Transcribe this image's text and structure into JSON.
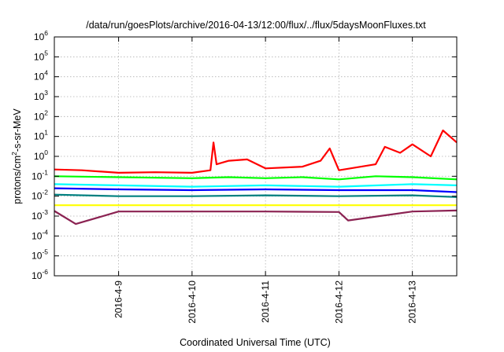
{
  "chart_data": {
    "type": "line",
    "title": "/data/run/goesPlots/archive/2016-04-13/12:00/flux/../flux/5daysMoonFluxes.txt",
    "xlabel": "Coordinated Universal Time (UTC)",
    "ylabel": "protons/cm²-s-sr-MeV",
    "ylabel_parts": {
      "pre": "protons/cm",
      "sup": "2",
      "post": "-s-sr-MeV"
    },
    "yscale": "log",
    "ylim": [
      1e-06,
      1000000.0
    ],
    "xlim": [
      "2016-04-08T03:00",
      "2016-04-13T14:30"
    ],
    "grid": true,
    "x_ticks": [
      {
        "label": "2016-4-9",
        "at": "2016-04-09T00:00"
      },
      {
        "label": "2016-4-10",
        "at": "2016-04-10T00:00"
      },
      {
        "label": "2016-4-11",
        "at": "2016-04-11T00:00"
      },
      {
        "label": "2016-4-12",
        "at": "2016-04-12T00:00"
      },
      {
        "label": "2016-4-13",
        "at": "2016-04-13T00:00"
      }
    ],
    "y_ticks": [
      {
        "base": "10",
        "exp": "-6",
        "value": 1e-06
      },
      {
        "base": "10",
        "exp": "-5",
        "value": 1e-05
      },
      {
        "base": "10",
        "exp": "-4",
        "value": 0.0001
      },
      {
        "base": "10",
        "exp": "-3",
        "value": 0.001
      },
      {
        "base": "10",
        "exp": "-2",
        "value": 0.01
      },
      {
        "base": "10",
        "exp": "-1",
        "value": 0.1
      },
      {
        "base": "10",
        "exp": "0",
        "value": 1
      },
      {
        "base": "10",
        "exp": "1",
        "value": 10
      },
      {
        "base": "10",
        "exp": "2",
        "value": 100
      },
      {
        "base": "10",
        "exp": "3",
        "value": 1000
      },
      {
        "base": "10",
        "exp": "4",
        "value": 10000
      },
      {
        "base": "10",
        "exp": "5",
        "value": 100000
      },
      {
        "base": "10",
        "exp": "6",
        "value": 1000000
      }
    ],
    "series": [
      {
        "color": "#ff0000",
        "points": [
          [
            "2016-04-08T03:00",
            0.22
          ],
          [
            "2016-04-08T12:00",
            0.2
          ],
          [
            "2016-04-09T00:00",
            0.15
          ],
          [
            "2016-04-09T12:00",
            0.16
          ],
          [
            "2016-04-10T00:00",
            0.15
          ],
          [
            "2016-04-10T06:00",
            0.2
          ],
          [
            "2016-04-10T07:00",
            5
          ],
          [
            "2016-04-10T08:00",
            0.4
          ],
          [
            "2016-04-10T12:00",
            0.6
          ],
          [
            "2016-04-10T18:00",
            0.7
          ],
          [
            "2016-04-11T00:00",
            0.25
          ],
          [
            "2016-04-11T12:00",
            0.3
          ],
          [
            "2016-04-11T18:00",
            0.6
          ],
          [
            "2016-04-11T21:00",
            2.5
          ],
          [
            "2016-04-12T00:00",
            0.2
          ],
          [
            "2016-04-12T12:00",
            0.4
          ],
          [
            "2016-04-12T15:00",
            3
          ],
          [
            "2016-04-12T20:00",
            1.5
          ],
          [
            "2016-04-13T00:00",
            4
          ],
          [
            "2016-04-13T06:00",
            1
          ],
          [
            "2016-04-13T10:00",
            20
          ],
          [
            "2016-04-13T14:30",
            5
          ]
        ]
      },
      {
        "color": "#00ff00",
        "points": [
          [
            "2016-04-08T03:00",
            0.1
          ],
          [
            "2016-04-09T00:00",
            0.09
          ],
          [
            "2016-04-10T00:00",
            0.08
          ],
          [
            "2016-04-10T12:00",
            0.09
          ],
          [
            "2016-04-11T00:00",
            0.08
          ],
          [
            "2016-04-11T12:00",
            0.09
          ],
          [
            "2016-04-12T00:00",
            0.07
          ],
          [
            "2016-04-12T12:00",
            0.1
          ],
          [
            "2016-04-13T00:00",
            0.09
          ],
          [
            "2016-04-13T14:30",
            0.07
          ]
        ]
      },
      {
        "color": "#00ffff",
        "points": [
          [
            "2016-04-08T03:00",
            0.04
          ],
          [
            "2016-04-09T00:00",
            0.035
          ],
          [
            "2016-04-10T00:00",
            0.03
          ],
          [
            "2016-04-11T00:00",
            0.035
          ],
          [
            "2016-04-12T00:00",
            0.03
          ],
          [
            "2016-04-13T00:00",
            0.04
          ],
          [
            "2016-04-13T14:30",
            0.035
          ]
        ]
      },
      {
        "color": "#0000ff",
        "points": [
          [
            "2016-04-08T03:00",
            0.025
          ],
          [
            "2016-04-09T00:00",
            0.022
          ],
          [
            "2016-04-10T00:00",
            0.02
          ],
          [
            "2016-04-11T00:00",
            0.022
          ],
          [
            "2016-04-12T00:00",
            0.02
          ],
          [
            "2016-04-13T00:00",
            0.02
          ],
          [
            "2016-04-13T14:30",
            0.016
          ]
        ]
      },
      {
        "color": "#008080",
        "points": [
          [
            "2016-04-08T03:00",
            0.012
          ],
          [
            "2016-04-09T00:00",
            0.01
          ],
          [
            "2016-04-10T00:00",
            0.01
          ],
          [
            "2016-04-11T00:00",
            0.011
          ],
          [
            "2016-04-12T00:00",
            0.01
          ],
          [
            "2016-04-13T00:00",
            0.011
          ],
          [
            "2016-04-13T14:30",
            0.009
          ]
        ]
      },
      {
        "color": "#ffff00",
        "points": [
          [
            "2016-04-08T03:00",
            0.0035
          ],
          [
            "2016-04-10T00:00",
            0.0035
          ],
          [
            "2016-04-12T00:00",
            0.0035
          ],
          [
            "2016-04-13T14:30",
            0.0035
          ]
        ]
      },
      {
        "color": "#8b2252",
        "points": [
          [
            "2016-04-08T03:00",
            0.0018
          ],
          [
            "2016-04-08T10:00",
            0.0004
          ],
          [
            "2016-04-09T00:00",
            0.0017
          ],
          [
            "2016-04-10T00:00",
            0.0017
          ],
          [
            "2016-04-11T00:00",
            0.0017
          ],
          [
            "2016-04-12T00:00",
            0.0016
          ],
          [
            "2016-04-12T03:00",
            0.0006
          ],
          [
            "2016-04-13T00:00",
            0.0017
          ],
          [
            "2016-04-13T14:30",
            0.0019
          ]
        ]
      }
    ]
  }
}
